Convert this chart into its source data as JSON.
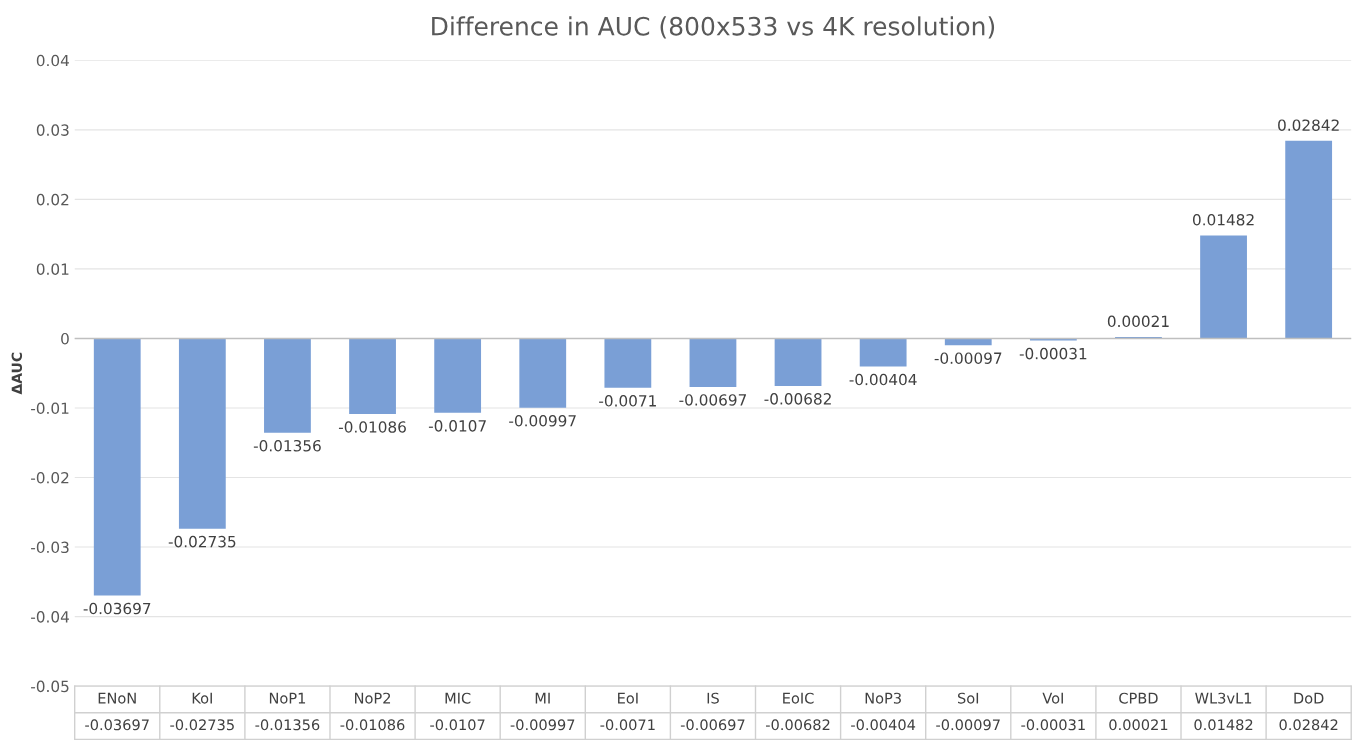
{
  "chart_data": {
    "type": "bar",
    "title": "Difference in AUC (800x533 vs 4K resolution)",
    "ylabel": "ΔAUC",
    "categories": [
      "ENoN",
      "KoI",
      "NoP1",
      "NoP2",
      "MIC",
      "MI",
      "EoI",
      "IS",
      "EoIC",
      "NoP3",
      "SoI",
      "VoI",
      "CPBD",
      "WL3vL1",
      "DoD"
    ],
    "values": [
      -0.03697,
      -0.02735,
      -0.01356,
      -0.01086,
      -0.0107,
      -0.00997,
      -0.0071,
      -0.00697,
      -0.00682,
      -0.00404,
      -0.00097,
      -0.00031,
      0.00021,
      0.01482,
      0.02842
    ],
    "data_labels": true,
    "color": "#7a9fd6",
    "ylim": [
      -0.05,
      0.04
    ],
    "yticks": [
      -0.05,
      -0.04,
      -0.03,
      -0.02,
      -0.01,
      0,
      0.01,
      0.02,
      0.03,
      0.04
    ],
    "grid": "y",
    "annotations": [
      "-0.03697",
      "-0.02735",
      "-0.01356",
      "-0.01086",
      "-0.0107",
      "-0.00997",
      "-0.0071",
      "-0.00697",
      "-0.00682",
      "-0.00404",
      "-0.00097",
      "-0.00031",
      "0.00021",
      "0.01482",
      "0.02842"
    ]
  }
}
